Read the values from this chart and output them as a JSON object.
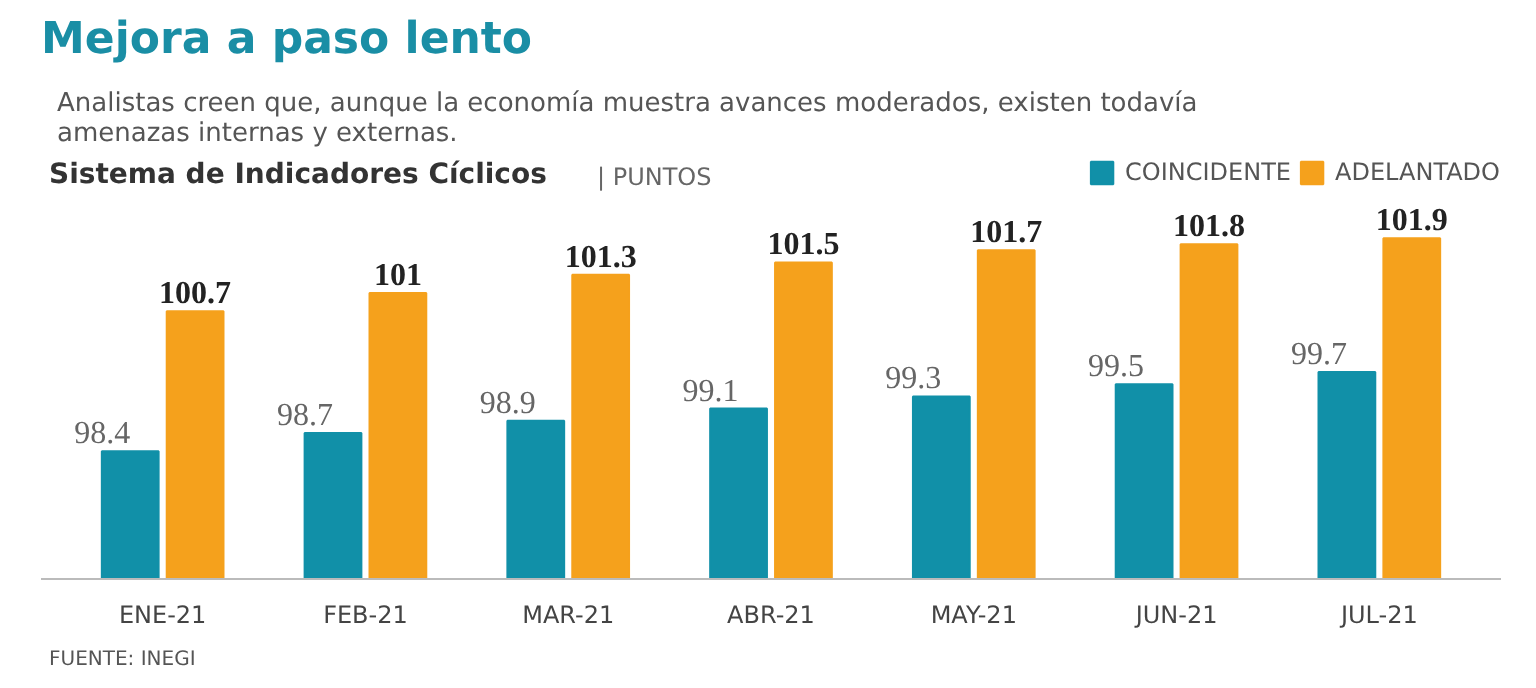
{
  "chart_data": {
    "type": "bar",
    "title": "Mejora a paso lento",
    "subtitle": "Analistas creen que, aunque la economía muestra avances moderados, existen todavía amenazas internas y externas.",
    "xlabel": "Sistema de Indicadores Cíclicos",
    "ylabel": "| PUNTOS",
    "categories": [
      "ENE-21",
      "FEB-21",
      "MAR-21",
      "ABR-21",
      "MAY-21",
      "JUN-21",
      "JUL-21"
    ],
    "series": [
      {
        "name": "COINCIDENTE",
        "color": "#1190a8",
        "values": [
          98.4,
          98.7,
          98.9,
          99.1,
          99.3,
          99.5,
          99.7
        ]
      },
      {
        "name": "ADELANTADO",
        "color": "#f5a11c",
        "values": [
          100.7,
          101,
          101.3,
          101.5,
          101.7,
          101.8,
          101.9
        ]
      }
    ],
    "ylim": [
      96.3,
      103.2
    ],
    "data_labels": true,
    "grid": false,
    "legend": "top right",
    "annotations": [
      "FUENTE: INEGI"
    ]
  }
}
